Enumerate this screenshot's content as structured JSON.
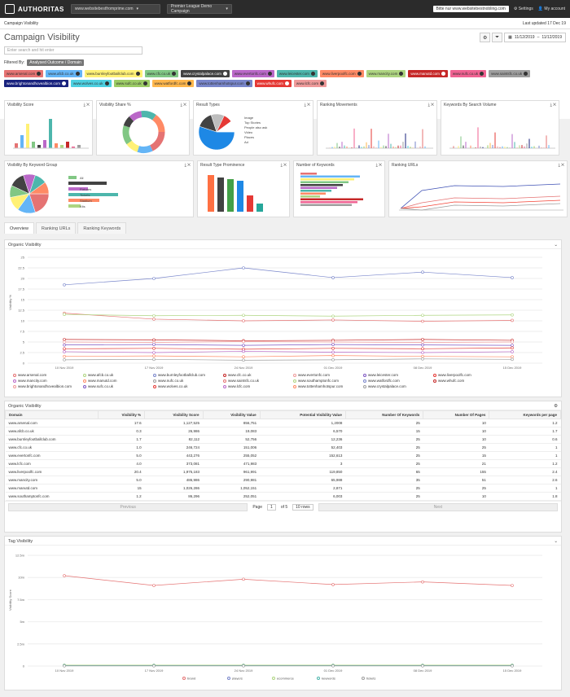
{
  "topbar": {
    "logo": "AUTHORITAS",
    "project": "www.websitebestfromprime.com",
    "campaign": "Premier League Demo Campaign",
    "banner": "Bitte nur www.websitebestnobling.com",
    "settings": "Settings",
    "account": "My account"
  },
  "subbar": {
    "left": "Campaign Visibility",
    "right": "Last updated 17 Dec 19"
  },
  "title": "Campaign Visibility",
  "daterange": {
    "from": "11/12/2019",
    "to": "11/12/2019"
  },
  "search_placeholder": "Enter search and hit enter",
  "filtered_by": "Filtered By:",
  "filter_chip": "Analysed Outcome / Domain",
  "tags": [
    {
      "label": "www.arsenal.com",
      "color": "#e57373"
    },
    {
      "label": "www.afcb.co.uk",
      "color": "#64b5f6"
    },
    {
      "label": "www.burnleyfootballclub.com",
      "color": "#fff176"
    },
    {
      "label": "www.cfc.co.uk",
      "color": "#81c784"
    },
    {
      "label": "www.crystalpalace.com",
      "color": "#424242"
    },
    {
      "label": "www.evertonfc.com",
      "color": "#ba68c8"
    },
    {
      "label": "www.leicester.com",
      "color": "#4db6ac"
    },
    {
      "label": "www.liverpoolfc.com",
      "color": "#ff8a65"
    },
    {
      "label": "www.mancity.com",
      "color": "#aed581"
    },
    {
      "label": "www.manutd.com",
      "color": "#c62828"
    },
    {
      "label": "www.nufc.co.uk",
      "color": "#f06292"
    },
    {
      "label": "www.saintsfc.co.uk",
      "color": "#9e9e9e"
    },
    {
      "label": "www.brightonandhovealbion.com",
      "color": "#1a237e"
    },
    {
      "label": "www.wolves.co.uk",
      "color": "#4dd0e1"
    },
    {
      "label": "www.sufc.co.uk",
      "color": "#9ccc65"
    },
    {
      "label": "www.watfordfc.com",
      "color": "#ffb74d"
    },
    {
      "label": "www.tottenhamhotspur.com",
      "color": "#7986cb"
    },
    {
      "label": "www.whufc.com",
      "color": "#e53935"
    },
    {
      "label": "www.lcfc.com",
      "color": "#ef9a9a"
    }
  ],
  "panels_row1": [
    {
      "title": "Visibility Score"
    },
    {
      "title": "Visibility Share %"
    },
    {
      "title": "Result Types"
    },
    {
      "title": "Ranking Movements"
    },
    {
      "title": "Keywords By Search Volume"
    }
  ],
  "panels_row2": [
    {
      "title": "Visibility By Keyword Group"
    },
    {
      "title": "Result Type Prominence"
    },
    {
      "title": "Number of Keywords"
    },
    {
      "title": "Ranking URLs"
    }
  ],
  "result_legend": [
    "Image",
    "Top Stories",
    "People also ask",
    "Video",
    "Places",
    "Ad"
  ],
  "group_legend": [
    "All",
    "Football",
    "Fixtures",
    "Tickets",
    "Stadium",
    "Kits"
  ],
  "tabs": [
    "Overview",
    "Ranking URLs",
    "Ranking Keywords"
  ],
  "organic": {
    "title": "Organic Visibility",
    "ylabel": "Visibility %",
    "xticks": [
      "10 Nov 2019",
      "17 Nov 2019",
      "24 Nov 2019",
      "01 Dec 2019",
      "08 Dec 2019",
      "15 Dec 2019"
    ],
    "yticks": [
      "0",
      "2.5",
      "5",
      "7.5",
      "10",
      "12.5",
      "15",
      "17.5",
      "20",
      "22.5",
      "25"
    ]
  },
  "chart_data": {
    "type": "line",
    "x": [
      "10 Nov 2019",
      "17 Nov 2019",
      "24 Nov 2019",
      "01 Dec 2019",
      "08 Dec 2019",
      "15 Dec 2019"
    ],
    "series": [
      {
        "name": "www.arsenal.com",
        "values": [
          11.8,
          10.4,
          10,
          10.2,
          9.9,
          10.1
        ]
      },
      {
        "name": "www.afcb.co.uk",
        "values": [
          11.5,
          11.2,
          11.3,
          11.1,
          11.3,
          11.4
        ]
      },
      {
        "name": "www.evertonfc.com",
        "values": [
          18.5,
          20,
          22.5,
          20.2,
          21.5,
          20.2
        ]
      },
      {
        "name": "www.cfc.co.uk",
        "values": [
          5.6,
          5.5,
          5.3,
          5.4,
          5.6,
          5.4
        ]
      },
      {
        "name": "www.liverpoolfc.com",
        "values": [
          5.0,
          4.9,
          5.1,
          5.0,
          4.9,
          5.0
        ]
      },
      {
        "name": "www.mancity.com",
        "values": [
          4.3,
          4.4,
          4.2,
          4.4,
          4.3,
          4.2
        ]
      },
      {
        "name": "www.manutd.com",
        "values": [
          3.4,
          3.5,
          3.3,
          3.5,
          3.4,
          3.6
        ]
      },
      {
        "name": "www.tottenhamhotspur.com",
        "values": [
          2.7,
          2.5,
          2.8,
          2.6,
          2.5,
          2.7
        ]
      },
      {
        "name": "www.whufc.com",
        "values": [
          1.6,
          1.7,
          1.5,
          1.8,
          1.6,
          1.5
        ]
      },
      {
        "name": "www.nufc.co.uk",
        "values": [
          0.8,
          0.9,
          0.7,
          0.8,
          1.0,
          0.9
        ]
      }
    ]
  },
  "series_colors": [
    "#e57373",
    "#aed581",
    "#7986cb",
    "#c62828",
    "#ef9a9a",
    "#7e57c2",
    "#e53935",
    "#ba68c8",
    "#ff8a65",
    "#9e9e9e"
  ],
  "legend": [
    "www.arsenal.com",
    "www.afcb.co.uk",
    "www.burnleyfootballclub.com",
    "www.cfc.co.uk",
    "www.evertonfc.com",
    "www.leicester.com",
    "www.liverpoolfc.com",
    "www.mancity.com",
    "www.manutd.com",
    "www.nufc.co.uk",
    "www.saintsfc.co.uk",
    "www.southamptonfc.com",
    "www.watfordfc.com",
    "www.whufc.com",
    "www.brightonandhovealbion.com",
    "www.sufc.co.uk",
    "www.wolves.co.uk",
    "www.lcfc.com",
    "www.tottenhamhotspur.com",
    "www.crystalpalace.com"
  ],
  "table": {
    "title": "Organic Visibility",
    "headers": [
      "Domain",
      "Visibility %",
      "Visibility Score",
      "Visibility Value",
      "Potential Visibility Value",
      "Number Of Keywords",
      "Number Of Pages",
      "Keywords per page"
    ],
    "rows": [
      [
        "www.arsenal.com",
        "17.6",
        "1,127,525",
        "856,751",
        "1,2008",
        "25",
        "10",
        "1.2"
      ],
      [
        "www.afcb.co.uk",
        "0.3",
        "26,986",
        "19,083",
        "6,570",
        "15",
        "10",
        "1.7"
      ],
      [
        "www.burnleyfootballclub.com",
        "1.7",
        "82,112",
        "52,756",
        "12,236",
        "25",
        "10",
        "0.6"
      ],
      [
        "www.cfc.co.uk",
        "1.0",
        "246,724",
        "151,006",
        "52,403",
        "25",
        "25",
        "1"
      ],
      [
        "www.evertonfc.com",
        "5.0",
        "443,276",
        "255,052",
        "152,613",
        "25",
        "15",
        "1"
      ],
      [
        "www.lcfc.com",
        "4.0",
        "373,081",
        "471,983",
        "3",
        "25",
        "21",
        "1.2"
      ],
      [
        "www.liverpoolfc.com",
        "20.4",
        "1,975,183",
        "961,991",
        "119,850",
        "65",
        "155",
        "2.4"
      ],
      [
        "www.mancity.com",
        "5.0",
        "486,986",
        "290,981",
        "65,988",
        "35",
        "51",
        "2.6"
      ],
      [
        "www.manutd.com",
        "15",
        "1,026,286",
        "1,052,151",
        "2,871",
        "25",
        "25",
        "1"
      ],
      [
        "www.southamptonfc.com",
        "1.2",
        "86,296",
        "252,051",
        "6,003",
        "25",
        "10",
        "1.8"
      ]
    ]
  },
  "pager": {
    "prev": "Previous",
    "page_label": "Page",
    "page": "1",
    "of": "of 5",
    "rows": "10 rows",
    "next": "Next"
  },
  "tag_vis": {
    "title": "Tag Visibility",
    "ylabel": "Visibility Score",
    "xticks": [
      "10 Nov 2019",
      "17 Nov 2019",
      "24 Nov 2019",
      "01 Dec 2019",
      "08 Dec 2019",
      "15 Dec 2019"
    ],
    "yticks": [
      "0",
      "2.5m",
      "5m",
      "7.5m",
      "10m",
      "12.5m"
    ],
    "legend": [
      "brand",
      "players",
      "ecommerce",
      "keywords",
      "tickets"
    ]
  },
  "tag_chart": {
    "series": [
      {
        "name": "brand",
        "values": [
          10.2,
          9.1,
          9.8,
          9.2,
          9.5,
          9.1
        ],
        "color": "#e57373"
      },
      {
        "name": "players",
        "values": [
          0.1,
          0.1,
          0.1,
          0.1,
          0.1,
          0.1
        ],
        "color": "#7986cb"
      },
      {
        "name": "ecommerce",
        "values": [
          0.1,
          0.1,
          0.1,
          0.1,
          0.1,
          0.1
        ],
        "color": "#aed581"
      },
      {
        "name": "keywords",
        "values": [
          0.05,
          0.05,
          0.05,
          0.05,
          0.05,
          0.05
        ],
        "color": "#4db6ac"
      },
      {
        "name": "tickets",
        "values": [
          0.02,
          0.02,
          0.02,
          0.02,
          0.02,
          0.02
        ],
        "color": "#9e9e9e"
      }
    ]
  }
}
